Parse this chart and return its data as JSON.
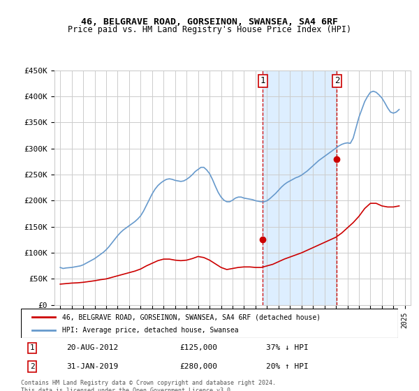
{
  "title": "46, BELGRAVE ROAD, GORSEINON, SWANSEA, SA4 6RF",
  "subtitle": "Price paid vs. HM Land Registry's House Price Index (HPI)",
  "footer": "Contains HM Land Registry data © Crown copyright and database right 2024.\nThis data is licensed under the Open Government Licence v3.0.",
  "legend_line1": "46, BELGRAVE ROAD, GORSEINON, SWANSEA, SA4 6RF (detached house)",
  "legend_line2": "HPI: Average price, detached house, Swansea",
  "transaction1_label": "1",
  "transaction1_date": "20-AUG-2012",
  "transaction1_price": "£125,000",
  "transaction1_hpi": "37% ↓ HPI",
  "transaction2_label": "2",
  "transaction2_date": "31-JAN-2019",
  "transaction2_price": "£280,000",
  "transaction2_hpi": "20% ↑ HPI",
  "shade_start": 2012.64,
  "shade_end": 2019.08,
  "vline1_x": 2012.64,
  "vline2_x": 2019.08,
  "dot1_x": 2012.64,
  "dot1_y": 125000,
  "dot2_x": 2019.08,
  "dot2_y": 280000,
  "ylim_min": 0,
  "ylim_max": 450000,
  "xlim_min": 1994.5,
  "xlim_max": 2025.5,
  "yticks": [
    0,
    50000,
    100000,
    150000,
    200000,
    250000,
    300000,
    350000,
    400000,
    450000
  ],
  "xticks": [
    1995,
    1996,
    1997,
    1998,
    1999,
    2000,
    2001,
    2002,
    2003,
    2004,
    2005,
    2006,
    2007,
    2008,
    2009,
    2010,
    2011,
    2012,
    2013,
    2014,
    2015,
    2016,
    2017,
    2018,
    2019,
    2020,
    2021,
    2022,
    2023,
    2024,
    2025
  ],
  "red_color": "#cc0000",
  "blue_color": "#6699cc",
  "shade_color": "#ddeeff",
  "grid_color": "#cccccc",
  "bg_color": "#ffffff",
  "hpi_data_x": [
    1995.0,
    1995.25,
    1995.5,
    1995.75,
    1996.0,
    1996.25,
    1996.5,
    1996.75,
    1997.0,
    1997.25,
    1997.5,
    1997.75,
    1998.0,
    1998.25,
    1998.5,
    1998.75,
    1999.0,
    1999.25,
    1999.5,
    1999.75,
    2000.0,
    2000.25,
    2000.5,
    2000.75,
    2001.0,
    2001.25,
    2001.5,
    2001.75,
    2002.0,
    2002.25,
    2002.5,
    2002.75,
    2003.0,
    2003.25,
    2003.5,
    2003.75,
    2004.0,
    2004.25,
    2004.5,
    2004.75,
    2005.0,
    2005.25,
    2005.5,
    2005.75,
    2006.0,
    2006.25,
    2006.5,
    2006.75,
    2007.0,
    2007.25,
    2007.5,
    2007.75,
    2008.0,
    2008.25,
    2008.5,
    2008.75,
    2009.0,
    2009.25,
    2009.5,
    2009.75,
    2010.0,
    2010.25,
    2010.5,
    2010.75,
    2011.0,
    2011.25,
    2011.5,
    2011.75,
    2012.0,
    2012.25,
    2012.5,
    2012.75,
    2013.0,
    2013.25,
    2013.5,
    2013.75,
    2014.0,
    2014.25,
    2014.5,
    2014.75,
    2015.0,
    2015.25,
    2015.5,
    2015.75,
    2016.0,
    2016.25,
    2016.5,
    2016.75,
    2017.0,
    2017.25,
    2017.5,
    2017.75,
    2018.0,
    2018.25,
    2018.5,
    2018.75,
    2019.0,
    2019.25,
    2019.5,
    2019.75,
    2020.0,
    2020.25,
    2020.5,
    2020.75,
    2021.0,
    2021.25,
    2021.5,
    2021.75,
    2022.0,
    2022.25,
    2022.5,
    2022.75,
    2023.0,
    2023.25,
    2023.5,
    2023.75,
    2024.0,
    2024.25,
    2024.5
  ],
  "hpi_data_y": [
    72000,
    70000,
    71000,
    71500,
    72000,
    73000,
    74000,
    75000,
    77000,
    80000,
    83000,
    86000,
    89000,
    93000,
    97000,
    101000,
    106000,
    112000,
    119000,
    126000,
    133000,
    139000,
    144000,
    148000,
    152000,
    156000,
    160000,
    165000,
    171000,
    180000,
    191000,
    202000,
    213000,
    222000,
    229000,
    234000,
    238000,
    241000,
    242000,
    241000,
    239000,
    238000,
    237000,
    238000,
    241000,
    245000,
    250000,
    256000,
    260000,
    264000,
    264000,
    259000,
    252000,
    241000,
    228000,
    216000,
    207000,
    201000,
    198000,
    198000,
    201000,
    205000,
    207000,
    207000,
    205000,
    204000,
    203000,
    202000,
    200000,
    199000,
    198000,
    198000,
    200000,
    204000,
    209000,
    214000,
    220000,
    226000,
    231000,
    235000,
    238000,
    241000,
    244000,
    246000,
    249000,
    253000,
    257000,
    262000,
    267000,
    272000,
    277000,
    281000,
    285000,
    289000,
    293000,
    297000,
    301000,
    305000,
    308000,
    310000,
    311000,
    310000,
    320000,
    340000,
    360000,
    375000,
    390000,
    400000,
    408000,
    410000,
    408000,
    403000,
    397000,
    388000,
    378000,
    370000,
    368000,
    370000,
    375000
  ],
  "price_data_x": [
    1995.0,
    1995.5,
    1996.0,
    1996.5,
    1997.0,
    1997.5,
    1998.0,
    1998.5,
    1999.0,
    1999.5,
    2000.0,
    2000.5,
    2001.0,
    2001.5,
    2002.0,
    2002.5,
    2003.0,
    2003.5,
    2004.0,
    2004.5,
    2005.0,
    2005.5,
    2006.0,
    2006.5,
    2007.0,
    2007.5,
    2008.0,
    2008.5,
    2009.0,
    2009.5,
    2010.0,
    2010.5,
    2011.0,
    2011.5,
    2012.0,
    2012.5,
    2013.0,
    2013.5,
    2014.0,
    2014.5,
    2015.0,
    2015.5,
    2016.0,
    2016.5,
    2017.0,
    2017.5,
    2018.0,
    2018.5,
    2019.0,
    2019.5,
    2020.0,
    2020.5,
    2021.0,
    2021.5,
    2022.0,
    2022.5,
    2023.0,
    2023.5,
    2024.0,
    2024.5
  ],
  "price_data_y": [
    40000,
    41000,
    42000,
    42500,
    43500,
    45000,
    46500,
    48500,
    50000,
    53000,
    56000,
    59000,
    62000,
    65000,
    69000,
    75000,
    80000,
    85000,
    88000,
    88000,
    86000,
    85000,
    86000,
    89000,
    93000,
    91000,
    86000,
    79000,
    72000,
    68000,
    70000,
    72000,
    73000,
    73000,
    72000,
    72000,
    75000,
    78000,
    83000,
    88000,
    92000,
    96000,
    100000,
    105000,
    110000,
    115000,
    120000,
    125000,
    130000,
    138000,
    148000,
    158000,
    170000,
    185000,
    195000,
    195000,
    190000,
    188000,
    188000,
    190000
  ]
}
